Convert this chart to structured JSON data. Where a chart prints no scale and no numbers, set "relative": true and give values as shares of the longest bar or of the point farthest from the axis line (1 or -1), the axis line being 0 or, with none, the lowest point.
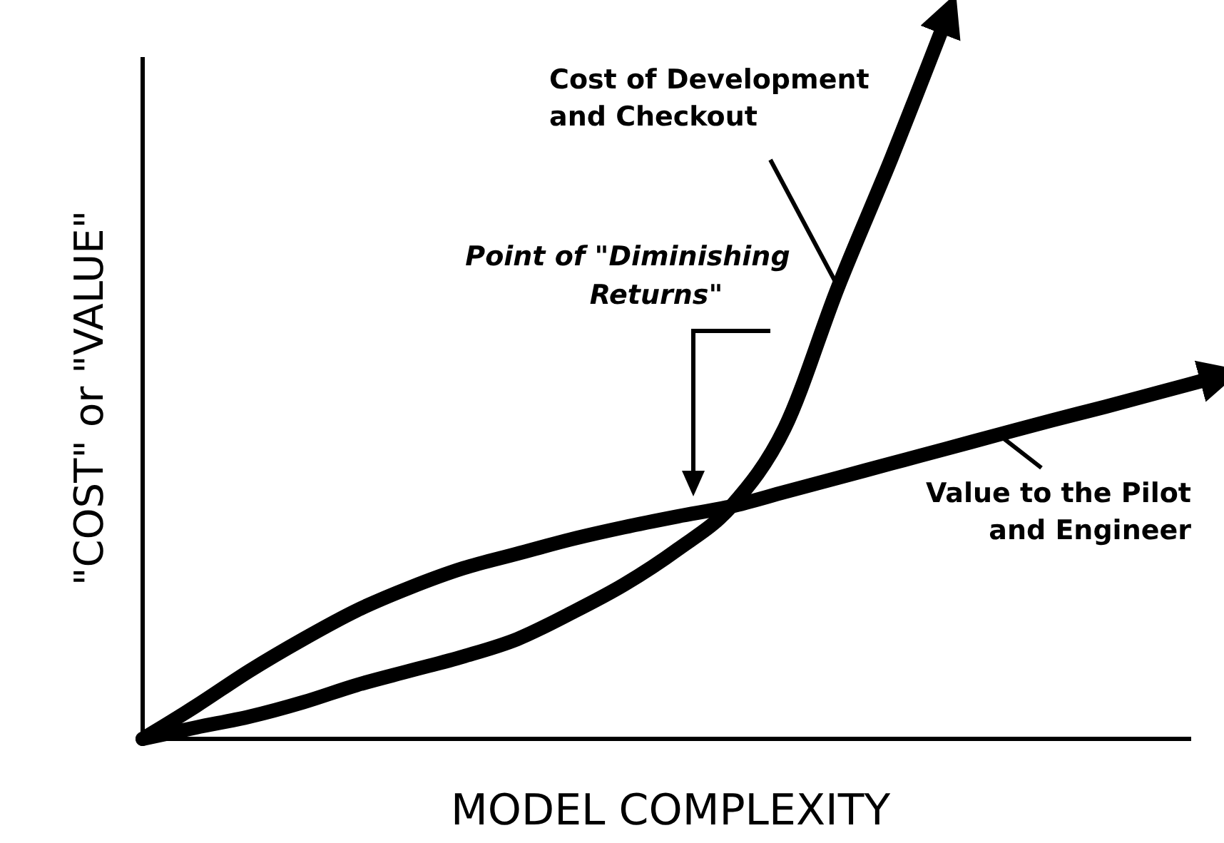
{
  "chart_data": {
    "type": "line",
    "relative": true,
    "xlabel": "MODEL COMPLEXITY",
    "ylabel": "\"COST\" or \"VALUE\"",
    "categories": [
      null,
      null,
      null,
      null,
      null,
      null,
      null,
      null,
      null,
      null,
      null,
      null,
      null,
      null,
      null,
      null,
      null,
      null,
      null,
      null,
      null
    ],
    "series": [
      {
        "name": "Cost of Development and Checkout",
        "color": "#000000",
        "values": [
          0,
          0.016,
          0.031,
          0.051,
          0.075,
          0.095,
          0.115,
          0.139,
          0.175,
          0.215,
          0.264,
          0.324,
          0.433,
          0.63,
          0.81,
          1,
          null,
          null,
          null,
          null,
          null
        ]
      },
      {
        "name": "Value to the Pilot and Engineer",
        "color": "#000000",
        "values": [
          0,
          0.046,
          0.095,
          0.139,
          0.179,
          0.211,
          0.238,
          0.258,
          0.278,
          0.295,
          0.31,
          0.324,
          0.344,
          0.364,
          0.384,
          0.404,
          0.424,
          0.444,
          0.463,
          0.483,
          0.503
        ]
      }
    ],
    "annotations": [
      "Point of \"Diminishing Returns\""
    ]
  }
}
